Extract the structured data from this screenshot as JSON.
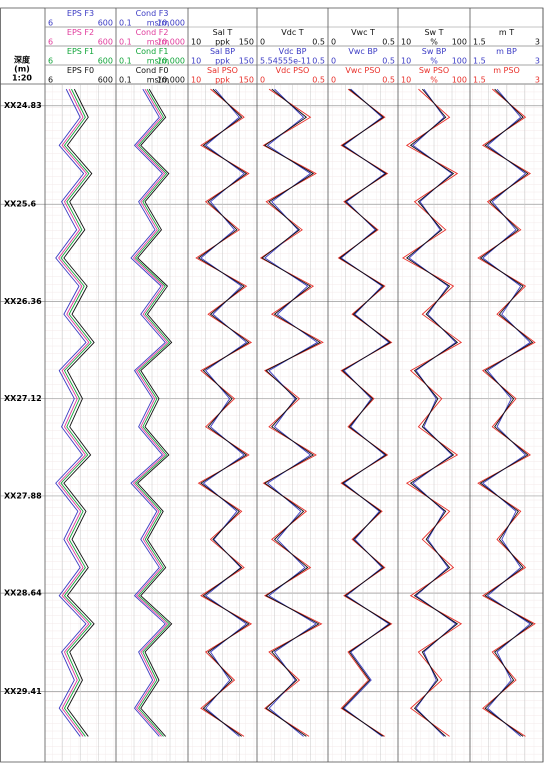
{
  "depth_track": {
    "title": [
      "深度",
      "(m)",
      "1:20"
    ],
    "ylim": [
      24.66,
      29.96
    ],
    "yticks": [
      {
        "value": 24.83,
        "label": "XX24.83"
      },
      {
        "value": 25.6,
        "label": "XX25.6"
      },
      {
        "value": 26.36,
        "label": "XX26.36"
      },
      {
        "value": 27.12,
        "label": "XX27.12"
      },
      {
        "value": 27.88,
        "label": "XX27.88"
      },
      {
        "value": 28.64,
        "label": "XX28.64"
      },
      {
        "value": 29.41,
        "label": "XX29.41"
      }
    ]
  },
  "depths": [
    24.7,
    24.92,
    25.14,
    25.36,
    25.58,
    25.8,
    26.02,
    26.24,
    26.46,
    26.68,
    26.9,
    27.12,
    27.34,
    27.56,
    27.78,
    28.0,
    28.22,
    28.44,
    28.66,
    28.88,
    29.1,
    29.32,
    29.54,
    29.76
  ],
  "chart_data": [
    {
      "type": "line",
      "scale": "linear",
      "series": [
        {
          "name": "EPS F3",
          "color": "#3b3bc4",
          "xlim": [
            6,
            600
          ],
          "xticks": [
            6,
            600
          ],
          "values": [
            180,
            300,
            120,
            330,
            140,
            270,
            90,
            290,
            160,
            350,
            120,
            250,
            140,
            320,
            90,
            280,
            160,
            300,
            120,
            350,
            140,
            250,
            120,
            300
          ]
        },
        {
          "name": "EPS F2",
          "color": "#e03c9c",
          "xlim": [
            6,
            600
          ],
          "xticks": [
            6,
            600
          ],
          "values": [
            205,
            325,
            145,
            355,
            165,
            295,
            115,
            315,
            185,
            375,
            145,
            275,
            165,
            345,
            115,
            305,
            185,
            325,
            145,
            375,
            165,
            275,
            145,
            325
          ]
        },
        {
          "name": "EPS F1",
          "color": "#12a53a",
          "xlim": [
            6,
            600
          ],
          "xticks": [
            6,
            600
          ],
          "values": [
            225,
            345,
            165,
            375,
            185,
            315,
            135,
            335,
            205,
            395,
            165,
            295,
            185,
            365,
            135,
            325,
            205,
            345,
            165,
            395,
            185,
            295,
            165,
            345
          ]
        },
        {
          "name": "EPS F0",
          "color": "#111111",
          "xlim": [
            6,
            600
          ],
          "xticks": [
            6,
            600
          ],
          "values": [
            250,
            370,
            190,
            400,
            210,
            340,
            160,
            360,
            230,
            420,
            190,
            320,
            210,
            390,
            160,
            350,
            230,
            370,
            190,
            420,
            210,
            320,
            190,
            370
          ]
        }
      ]
    },
    {
      "type": "line",
      "scale": "log",
      "series": [
        {
          "name": "Cond F3",
          "color": "#3b3bc4",
          "unit": "ms/m",
          "xlim": [
            0.1,
            10000
          ],
          "xticks": [
            0.1,
            {
              "value": 10000,
              "label": "10,000"
            }
          ],
          "values": [
            7,
            105,
            1.8,
            175,
            3.5,
            52,
            1,
            140,
            5,
            280,
            1.8,
            35,
            3.5,
            175,
            1,
            70,
            5,
            105,
            1.8,
            280,
            3.5,
            35,
            1.8,
            105
          ]
        },
        {
          "name": "Cond F2",
          "color": "#e03c9c",
          "unit": "ms/m",
          "xlim": [
            0.1,
            10000
          ],
          "xticks": [
            0.1,
            {
              "value": 10000,
              "label": "10,000"
            }
          ],
          "values": [
            10,
            150,
            2.5,
            250,
            5,
            75,
            1.5,
            200,
            7.5,
            400,
            2.5,
            50,
            5,
            250,
            1.5,
            100,
            7.5,
            150,
            2.5,
            400,
            5,
            50,
            2.5,
            150
          ]
        },
        {
          "name": "Cond F1",
          "color": "#12a53a",
          "unit": "ms/m",
          "xlim": [
            0.1,
            10000
          ],
          "xticks": [
            0.1,
            {
              "value": 10000,
              "label": "10,000"
            }
          ],
          "values": [
            14,
            210,
            3.5,
            350,
            7,
            105,
            2.1,
            280,
            10.5,
            560,
            3.5,
            70,
            7,
            350,
            2.1,
            140,
            10.5,
            210,
            3.5,
            560,
            7,
            70,
            3.5,
            210
          ]
        },
        {
          "name": "Cond F0",
          "color": "#111111",
          "unit": "ms/m",
          "xlim": [
            0.1,
            10000
          ],
          "xticks": [
            0.1,
            {
              "value": 10000,
              "label": "10,000"
            }
          ],
          "values": [
            20,
            300,
            5,
            500,
            10,
            150,
            3,
            400,
            15,
            800,
            5,
            100,
            10,
            500,
            3,
            200,
            15,
            300,
            5,
            800,
            10,
            100,
            5,
            300
          ]
        }
      ]
    },
    {
      "type": "line",
      "scale": "linear",
      "series": [
        {
          "name": "Sal T",
          "color": "#111111",
          "unit": "ppk",
          "xlim": [
            10,
            150
          ],
          "xticks": [
            10,
            150
          ],
          "values": [
            60,
            120,
            40,
            130,
            50,
            110,
            30,
            125,
            55,
            135,
            40,
            100,
            50,
            130,
            35,
            115,
            60,
            120,
            40,
            135,
            50,
            100,
            40,
            120
          ]
        },
        {
          "name": "Sal BP",
          "color": "#3b3bc4",
          "unit": "ppk",
          "xlim": [
            10,
            150
          ],
          "xticks": [
            10,
            150
          ],
          "values": [
            65,
            115,
            45,
            125,
            55,
            105,
            35,
            120,
            60,
            130,
            45,
            95,
            55,
            125,
            40,
            110,
            62,
            118,
            45,
            130,
            55,
            95,
            45,
            115
          ]
        },
        {
          "name": "Sal PSO",
          "color": "#e8302a",
          "unit": "ppk",
          "xlim": [
            10,
            150
          ],
          "xticks": [
            10,
            150
          ],
          "values": [
            55,
            125,
            35,
            135,
            45,
            115,
            25,
            130,
            50,
            140,
            35,
            105,
            45,
            135,
            30,
            120,
            55,
            125,
            35,
            140,
            45,
            105,
            35,
            125
          ]
        }
      ]
    },
    {
      "type": "line",
      "scale": "linear",
      "series": [
        {
          "name": "Vdc T",
          "color": "#111111",
          "xlim": [
            0,
            0.5
          ],
          "xticks": [
            0,
            0.5
          ],
          "values": [
            0.1,
            0.35,
            0.05,
            0.4,
            0.08,
            0.3,
            0.03,
            0.38,
            0.12,
            0.45,
            0.06,
            0.28,
            0.1,
            0.4,
            0.05,
            0.33,
            0.12,
            0.36,
            0.06,
            0.44,
            0.1,
            0.28,
            0.06,
            0.35
          ]
        },
        {
          "name": "Vdc BP",
          "color": "#3b3bc4",
          "xlim": [
            5.54555e-11,
            0.5
          ],
          "xticks": [
            5.54555e-11,
            0.5
          ],
          "values": [
            0.12,
            0.33,
            0.07,
            0.38,
            0.1,
            0.29,
            0.05,
            0.36,
            0.14,
            0.43,
            0.08,
            0.27,
            0.12,
            0.38,
            0.07,
            0.31,
            0.14,
            0.34,
            0.08,
            0.42,
            0.12,
            0.27,
            0.08,
            0.33
          ]
        },
        {
          "name": "Vdc PSO",
          "color": "#e8302a",
          "xlim": [
            0,
            0.5
          ],
          "xticks": [
            0,
            0.5
          ],
          "values": [
            0.08,
            0.38,
            0.04,
            0.42,
            0.06,
            0.32,
            0.02,
            0.4,
            0.1,
            0.47,
            0.05,
            0.3,
            0.08,
            0.42,
            0.04,
            0.35,
            0.1,
            0.38,
            0.05,
            0.46,
            0.08,
            0.3,
            0.05,
            0.37
          ]
        }
      ]
    },
    {
      "type": "line",
      "scale": "linear",
      "series": [
        {
          "name": "Vwc T",
          "color": "#111111",
          "xlim": [
            0,
            0.5
          ],
          "xticks": [
            0,
            0.5
          ],
          "values": [
            0.15,
            0.4,
            0.1,
            0.42,
            0.12,
            0.35,
            0.08,
            0.4,
            0.18,
            0.45,
            0.1,
            0.32,
            0.15,
            0.42,
            0.1,
            0.38,
            0.18,
            0.4,
            0.12,
            0.45,
            0.15,
            0.3,
            0.1,
            0.4
          ]
        },
        {
          "name": "Vwc BP",
          "color": "#3b3bc4",
          "xlim": [
            0,
            0.5
          ],
          "xticks": [
            0,
            0.5
          ],
          "values": [
            0.16,
            0.39,
            0.11,
            0.41,
            0.13,
            0.34,
            0.09,
            0.39,
            0.19,
            0.44,
            0.11,
            0.31,
            0.16,
            0.41,
            0.11,
            0.37,
            0.19,
            0.39,
            0.13,
            0.44,
            0.16,
            0.31,
            0.11,
            0.39
          ]
        },
        {
          "name": "Vwc PSO",
          "color": "#e8302a",
          "xlim": [
            0,
            0.5
          ],
          "xticks": [
            0,
            0.5
          ],
          "values": [
            0.14,
            0.41,
            0.09,
            0.43,
            0.11,
            0.36,
            0.07,
            0.41,
            0.17,
            0.46,
            0.09,
            0.33,
            0.14,
            0.43,
            0.09,
            0.39,
            0.17,
            0.41,
            0.11,
            0.46,
            0.14,
            0.29,
            0.09,
            0.41
          ]
        }
      ]
    },
    {
      "type": "line",
      "scale": "linear",
      "series": [
        {
          "name": "Sw T",
          "color": "#111111",
          "unit": "%",
          "xlim": [
            10,
            100
          ],
          "xticks": [
            10,
            100
          ],
          "values": [
            40,
            70,
            25,
            80,
            35,
            65,
            20,
            75,
            45,
            85,
            30,
            60,
            40,
            80,
            25,
            70,
            45,
            75,
            30,
            85,
            40,
            60,
            30,
            70
          ]
        },
        {
          "name": "Sw BP",
          "color": "#3b3bc4",
          "unit": "%",
          "xlim": [
            10,
            100
          ],
          "xticks": [
            10,
            100
          ],
          "values": [
            42,
            68,
            28,
            78,
            37,
            63,
            23,
            73,
            47,
            83,
            32,
            58,
            42,
            78,
            28,
            68,
            47,
            73,
            32,
            83,
            42,
            58,
            32,
            68
          ]
        },
        {
          "name": "Sw PSO",
          "color": "#e8302a",
          "unit": "%",
          "xlim": [
            10,
            100
          ],
          "xticks": [
            10,
            100
          ],
          "values": [
            35,
            75,
            20,
            85,
            30,
            70,
            15,
            80,
            40,
            90,
            25,
            65,
            35,
            85,
            20,
            75,
            40,
            80,
            25,
            90,
            35,
            65,
            25,
            75
          ]
        }
      ]
    },
    {
      "type": "line",
      "scale": "linear",
      "series": [
        {
          "name": "m T",
          "color": "#111111",
          "xlim": [
            1.5,
            3
          ],
          "xticks": [
            1.5,
            3
          ],
          "values": [
            2.0,
            2.6,
            1.8,
            2.7,
            1.9,
            2.5,
            1.7,
            2.6,
            2.1,
            2.8,
            1.8,
            2.4,
            2.0,
            2.7,
            1.7,
            2.5,
            2.1,
            2.6,
            1.8,
            2.8,
            2.0,
            2.4,
            1.8,
            2.6
          ]
        },
        {
          "name": "m BP",
          "color": "#3b3bc4",
          "xlim": [
            1.5,
            3
          ],
          "xticks": [
            1.5,
            3
          ],
          "values": [
            2.05,
            2.55,
            1.85,
            2.65,
            1.95,
            2.45,
            1.75,
            2.55,
            2.15,
            2.75,
            1.85,
            2.35,
            2.05,
            2.65,
            1.75,
            2.45,
            2.15,
            2.55,
            1.85,
            2.75,
            2.05,
            2.35,
            1.85,
            2.55
          ]
        },
        {
          "name": "m PSO",
          "color": "#e8302a",
          "xlim": [
            1.5,
            3
          ],
          "xticks": [
            1.5,
            3
          ],
          "values": [
            1.95,
            2.65,
            1.75,
            2.75,
            1.85,
            2.55,
            1.65,
            2.65,
            2.05,
            2.85,
            1.75,
            2.45,
            1.95,
            2.75,
            1.65,
            2.55,
            2.05,
            2.65,
            1.75,
            2.85,
            1.95,
            2.45,
            1.75,
            2.65
          ]
        }
      ]
    }
  ]
}
